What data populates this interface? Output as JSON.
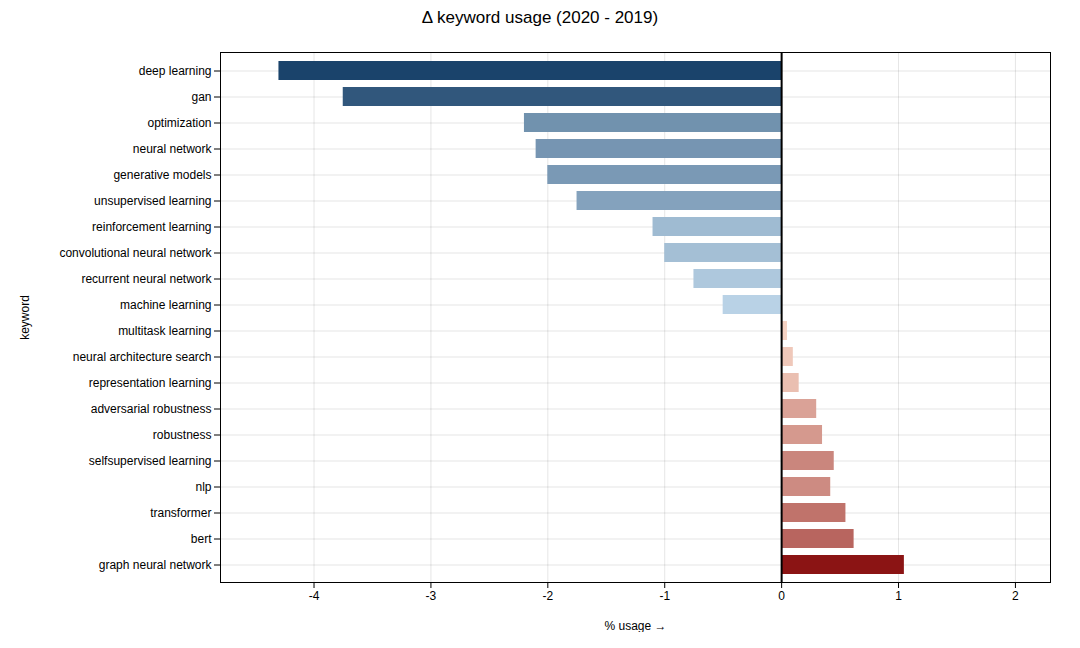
{
  "chart_data": {
    "type": "bar",
    "orientation": "horizontal",
    "title": "Δ keyword usage (2020 - 2019)",
    "xlabel": "% usage",
    "ylabel": "keyword",
    "categories": [
      "deep learning",
      "gan",
      "optimization",
      "neural network",
      "generative models",
      "unsupervised learning",
      "reinforcement learning",
      "convolutional neural network",
      "recurrent neural network",
      "machine learning",
      "multitask learning",
      "neural architecture search",
      "representation learning",
      "adversarial robustness",
      "robustness",
      "selfsupervised learning",
      "nlp",
      "transformer",
      "bert",
      "graph neural network"
    ],
    "values": [
      -4.3,
      -3.75,
      -2.2,
      -2.1,
      -2.0,
      -1.75,
      -1.1,
      -1.0,
      -0.75,
      -0.5,
      0.05,
      0.1,
      0.15,
      0.3,
      0.35,
      0.45,
      0.42,
      0.55,
      0.62,
      1.05
    ],
    "colors": [
      "#1a436b",
      "#31577c",
      "#7192ae",
      "#7695b2",
      "#7a99b5",
      "#84a2bd",
      "#9fbbd2",
      "#a4bfd5",
      "#aec8dd",
      "#b9d2e6",
      "#f5d2c3",
      "#efc8ba",
      "#eabfb1",
      "#daa297",
      "#d5998e",
      "#ca867d",
      "#cd8b82",
      "#c0736b",
      "#b8655f",
      "#8b1414"
    ],
    "xlim": [
      -4.8,
      2.3
    ],
    "xticks": [
      -4,
      -3,
      -2,
      -1,
      0,
      1,
      2
    ],
    "grid": true
  }
}
